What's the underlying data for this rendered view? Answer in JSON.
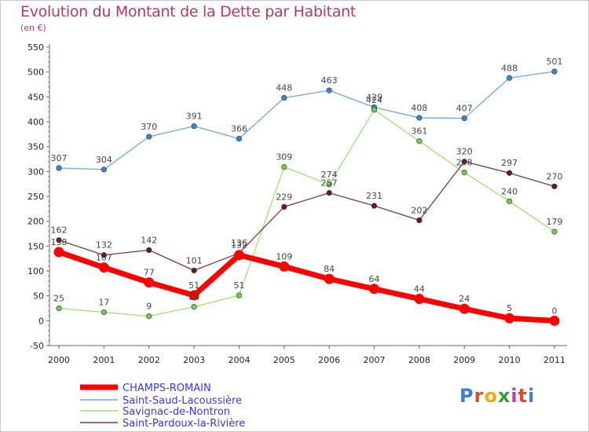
{
  "header": {
    "title": "Evolution du Montant de la Dette par Habitant",
    "unit": "(en €)"
  },
  "logo": {
    "text": "Proxiti",
    "colors": [
      "#3a7fd0",
      "#e04a2a",
      "#f2a900",
      "#3a9a3a",
      "#b33fb3",
      "#e04a2a",
      "#3a7fd0"
    ]
  },
  "chart_data": {
    "type": "line",
    "title": "Evolution du Montant de la Dette par Habitant",
    "subtitle": "(en €)",
    "xlabel": "",
    "ylabel": "",
    "x": [
      "2000",
      "2001",
      "2002",
      "2003",
      "2004",
      "2005",
      "2006",
      "2007",
      "2008",
      "2009",
      "2010",
      "2011"
    ],
    "ylim": [
      -50,
      550
    ],
    "yticks": [
      -50,
      0,
      50,
      100,
      150,
      200,
      250,
      300,
      350,
      400,
      450,
      500,
      550
    ],
    "grid": false,
    "legend": "bottom-left",
    "series": [
      {
        "name": "CHAMPS-ROMAIN",
        "values": [
          138,
          107,
          77,
          51,
          132,
          109,
          84,
          64,
          44,
          24,
          5,
          0
        ],
        "color": "#ff0000",
        "marker": "#ff0000",
        "width": 7,
        "markerSize": 6.5,
        "labelColor": "#444444"
      },
      {
        "name": "Saint-Saud-Lacoussière",
        "values": [
          307,
          304,
          370,
          391,
          366,
          448,
          463,
          429,
          408,
          407,
          488,
          501
        ],
        "color": "#6fa8dc",
        "marker": "#3d85c6",
        "width": 1.3,
        "markerSize": 3.3
      },
      {
        "name": "Savignac-de-Nontron",
        "values": [
          25,
          17,
          9,
          28,
          51,
          309,
          274,
          424,
          361,
          298,
          240,
          179
        ],
        "color": "#9fe07a",
        "marker": "#78c850",
        "width": 1.3,
        "markerSize": 3.3
      },
      {
        "name": "Saint-Pardoux-la-Rivière",
        "values": [
          162,
          132,
          142,
          101,
          136,
          229,
          257,
          231,
          202,
          320,
          297,
          270
        ],
        "color": "#7a3a3a",
        "marker": "#6a1a1a",
        "width": 1.3,
        "markerSize": 3.3
      }
    ],
    "data_labels": {
      "Saint-Saud-Lacoussière": [
        "307",
        "304",
        "370",
        "391",
        "366",
        "448",
        "463",
        "429",
        "408",
        "407",
        "488",
        "501"
      ],
      "Savignac-de-Nontron": [
        "25",
        "17",
        "9",
        "28",
        "51",
        "309",
        "274",
        "424",
        "361",
        "298",
        "240",
        "179"
      ],
      "Saint-Pardoux-la-Rivière": [
        "162",
        "132",
        "142",
        "101",
        "136",
        "229",
        "257",
        "231",
        "202",
        "320",
        "297",
        "270"
      ],
      "CHAMPS-ROMAIN": [
        "138",
        "107",
        "77",
        "51",
        "132",
        "109",
        "84",
        "64",
        "44",
        "24",
        "5",
        "0"
      ]
    }
  }
}
